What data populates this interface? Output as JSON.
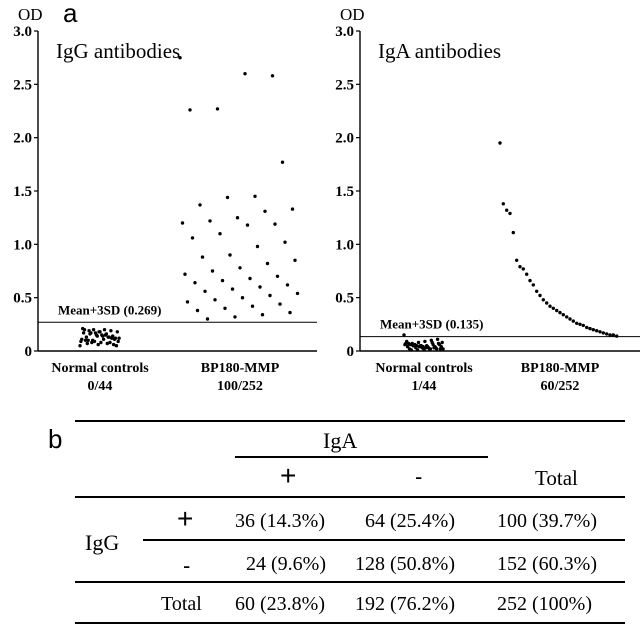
{
  "panel_a_label": "a",
  "panel_b_label": "b",
  "chart_data": [
    {
      "type": "scatter",
      "title": "IgG antibodies",
      "ylabel": "OD",
      "ylim": [
        0,
        3.0
      ],
      "yticks": [
        "0",
        "0.5",
        "1.0",
        "1.5",
        "2.0",
        "2.5",
        "3.0"
      ],
      "categories": [
        "Normal controls",
        "BP180-MMP"
      ],
      "category_counts": [
        "0/44",
        "100/252"
      ],
      "cutoff_label": "Mean+3SD (0.269)",
      "cutoff_value": 0.269,
      "series": [
        {
          "values": [
            0.05,
            0.06,
            0.07,
            0.08,
            0.09,
            0.1,
            0.11,
            0.12,
            0.13,
            0.14,
            0.15,
            0.16,
            0.17,
            0.18,
            0.19,
            0.2,
            0.06,
            0.08,
            0.1,
            0.12,
            0.14,
            0.16,
            0.18,
            0.2,
            0.07,
            0.09,
            0.11,
            0.13,
            0.15,
            0.17,
            0.19,
            0.21,
            0.05,
            0.08,
            0.11,
            0.14,
            0.17,
            0.2,
            0.09,
            0.12,
            0.15,
            0.18,
            0.1,
            0.13
          ]
        },
        {
          "values": [
            2.75,
            2.58,
            2.6,
            2.27,
            2.26,
            1.77,
            1.45,
            1.44,
            1.37,
            1.33,
            1.31,
            1.25,
            1.22,
            1.2,
            1.19,
            1.18,
            1.1,
            1.06,
            1.02,
            0.98,
            0.9,
            0.88,
            0.85,
            0.82,
            0.78,
            0.75,
            0.72,
            0.7,
            0.68,
            0.66,
            0.64,
            0.62,
            0.6,
            0.58,
            0.56,
            0.54,
            0.52,
            0.5,
            0.48,
            0.46,
            0.44,
            0.42,
            0.4,
            0.38,
            0.36,
            0.34,
            0.32,
            0.3
          ]
        }
      ]
    },
    {
      "type": "scatter",
      "title": "IgA antibodies",
      "ylabel": "OD",
      "ylim": [
        0,
        3.0
      ],
      "yticks": [
        "0",
        "0.5",
        "1.0",
        "1.5",
        "2.0",
        "2.5",
        "3.0"
      ],
      "categories": [
        "Normal controls",
        "BP180-MMP"
      ],
      "category_counts": [
        "1/44",
        "60/252"
      ],
      "cutoff_label": "Mean+3SD (0.135)",
      "cutoff_value": 0.135,
      "series": [
        {
          "values": [
            0.15,
            0.11,
            0.1,
            0.09,
            0.08,
            0.07,
            0.07,
            0.06,
            0.06,
            0.05,
            0.05,
            0.05,
            0.04,
            0.04,
            0.04,
            0.03,
            0.03,
            0.03,
            0.02,
            0.02,
            0.02,
            0.02,
            0.01,
            0.01,
            0.01,
            0.06,
            0.07,
            0.08,
            0.03,
            0.04,
            0.05,
            0.09,
            0.02,
            0.03,
            0.04,
            0.05,
            0.06,
            0.07,
            0.08,
            0.03,
            0.02,
            0.04,
            0.05,
            0.06
          ]
        },
        {
          "values": [
            1.95,
            1.38,
            1.32,
            1.29,
            1.11,
            0.85,
            0.79,
            0.77,
            0.72,
            0.66,
            0.62,
            0.56,
            0.52,
            0.48,
            0.45,
            0.42,
            0.4,
            0.38,
            0.36,
            0.34,
            0.32,
            0.3,
            0.28,
            0.26,
            0.25,
            0.24,
            0.22,
            0.21,
            0.2,
            0.19,
            0.18,
            0.17,
            0.16,
            0.15,
            0.15,
            0.14
          ]
        }
      ]
    }
  ],
  "table": {
    "header": "IgA",
    "plus": "+",
    "minus": "-",
    "total": "Total",
    "row_label": "IgG",
    "rows": [
      [
        "36 (14.3%)",
        "64 (25.4%)",
        "100 (39.7%)"
      ],
      [
        "24 (9.6%)",
        "128 (50.8%)",
        "152 (60.3%)"
      ],
      [
        "60 (23.8%)",
        "192 (76.2%)",
        "252 (100%)"
      ]
    ]
  }
}
